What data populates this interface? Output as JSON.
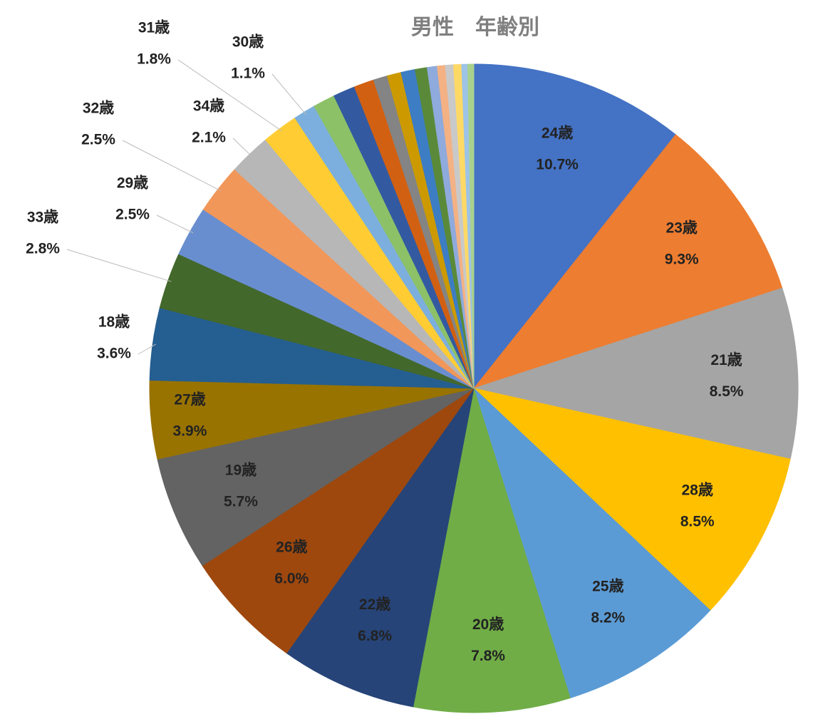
{
  "chart_data": {
    "type": "pie",
    "title": "男性　年齢別",
    "categories": [
      "24歳",
      "23歳",
      "21歳",
      "28歳",
      "25歳",
      "20歳",
      "22歳",
      "26歳",
      "19歳",
      "27歳",
      "18歳",
      "33歳",
      "29歳",
      "32歳",
      "34歳",
      "31歳",
      "30歳",
      null,
      null,
      null,
      null,
      null,
      null,
      null,
      null,
      null,
      null,
      null,
      null,
      null
    ],
    "values": [
      10.7,
      9.3,
      8.5,
      8.5,
      8.2,
      7.8,
      6.8,
      6.0,
      5.7,
      3.9,
      3.6,
      2.8,
      2.5,
      2.5,
      2.1,
      1.8,
      1.1,
      1.1,
      1.1,
      1.0,
      0.7,
      0.7,
      0.7,
      0.6,
      0.5,
      0.4,
      0.4,
      0.4,
      0.3,
      0.3
    ],
    "value_labels": [
      "10.7%",
      "9.3%",
      "8.5%",
      "8.5%",
      "8.2%",
      "7.8%",
      "6.8%",
      "6.0%",
      "5.7%",
      "3.9%",
      "3.6%",
      "2.8%",
      "2.5%",
      "2.5%",
      "2.1%",
      "1.8%",
      "1.1%",
      null,
      null,
      null,
      null,
      null,
      null,
      null,
      null,
      null,
      null,
      null,
      null,
      null
    ],
    "colors": [
      "#4472c4",
      "#ed7d31",
      "#a5a5a5",
      "#ffc000",
      "#5b9bd5",
      "#70ad47",
      "#264478",
      "#9e480e",
      "#636363",
      "#997300",
      "#255e91",
      "#43682b",
      "#698ed0",
      "#f1975a",
      "#b7b7b7",
      "#ffcd33",
      "#7cafdd",
      "#8cc168",
      "#335aa1",
      "#d26012",
      "#848484",
      "#cc9a00",
      "#3c7dc4",
      "#5a8a39",
      "#8faadc",
      "#f4b183",
      "#c9c9c9",
      "#ffd966",
      "#9dc3e6",
      "#a9d18e"
    ]
  }
}
